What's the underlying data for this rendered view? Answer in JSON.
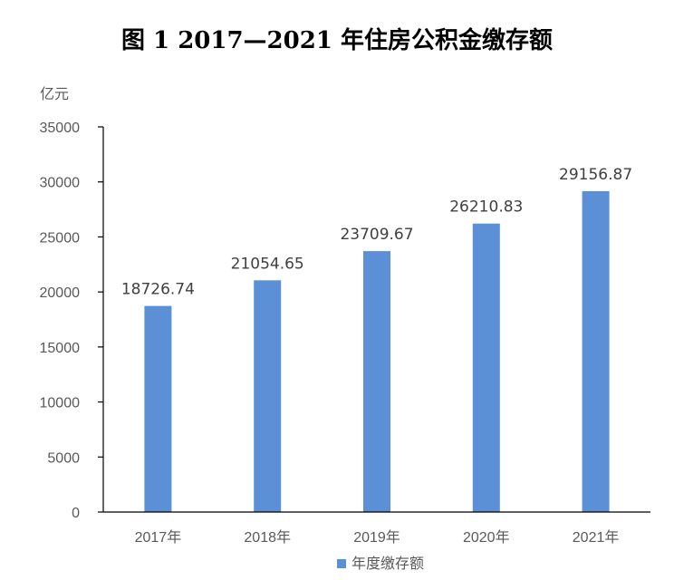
{
  "chart_data": {
    "type": "bar",
    "title": "图 1   2017—2021 年住房公积金缴存额",
    "ylabel": "亿元",
    "xlabel": "",
    "categories": [
      "2017年",
      "2018年",
      "2019年",
      "2020年",
      "2021年"
    ],
    "series": [
      {
        "name": "年度缴存额",
        "values": [
          18726.74,
          21054.65,
          23709.67,
          26210.83,
          29156.87
        ],
        "labels": [
          "18726.74",
          "21054.65",
          "23709.67",
          "26210.83",
          "29156.87"
        ],
        "color": "#5B8FD6"
      }
    ],
    "ylim": [
      0,
      35000
    ],
    "yticks": [
      "0",
      "5000",
      "10000",
      "15000",
      "20000",
      "25000",
      "30000",
      "35000"
    ],
    "grid": false,
    "legend_position": "bottom"
  }
}
